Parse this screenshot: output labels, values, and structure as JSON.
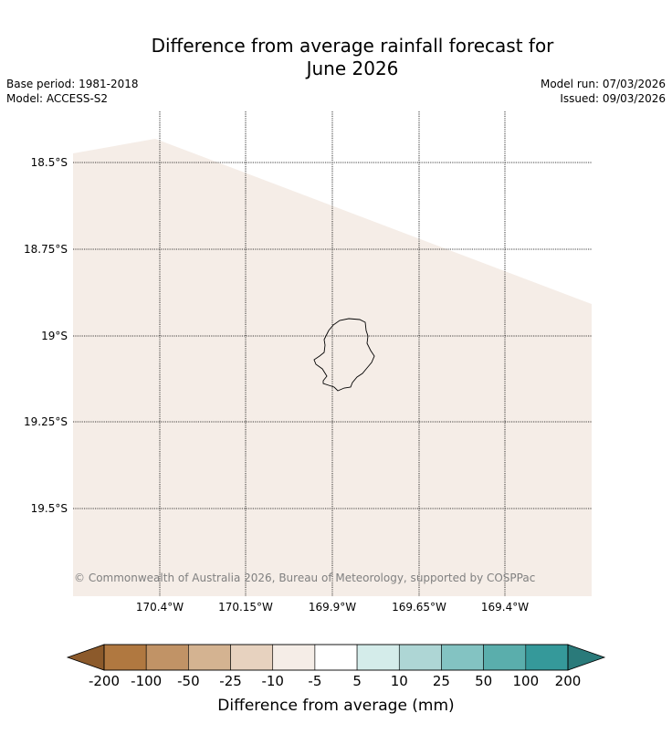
{
  "title": "Difference from average rainfall forecast for June 2026",
  "title_line1": "Difference from average rainfall forecast for",
  "title_line2": "June 2026",
  "base_period": "Base period: 1981-2018",
  "model": "Model: ACCESS-S2",
  "model_run": "Model run: 07/03/2026",
  "issued": "Issued: 09/03/2026",
  "copyright": "© Commonwealth of Australia 2026, Bureau of Meteorology, supported by COSPPac",
  "map": {
    "lat_labels": [
      "18.5°S",
      "18.75°S",
      "19°S",
      "19.25°S",
      "19.5°S"
    ],
    "lon_labels": [
      "170.4°W",
      "170.15°W",
      "169.9°W",
      "169.65°W",
      "169.4°W"
    ],
    "forecast_color": "#f5ede7",
    "forecast_category": "-10 to -5"
  },
  "colorbar": {
    "title": "Difference from average (mm)",
    "ticks": [
      "-200",
      "-100",
      "-50",
      "-25",
      "-10",
      "-5",
      "5",
      "10",
      "25",
      "50",
      "100",
      "200"
    ],
    "colors": [
      "#8c5a2b",
      "#b07840",
      "#c19366",
      "#d4b391",
      "#e7d2bf",
      "#f5ede7",
      "#ffffff",
      "#d4ecea",
      "#aed6d5",
      "#83c3c2",
      "#5aaeac",
      "#35999a",
      "#2a7a7a"
    ]
  }
}
